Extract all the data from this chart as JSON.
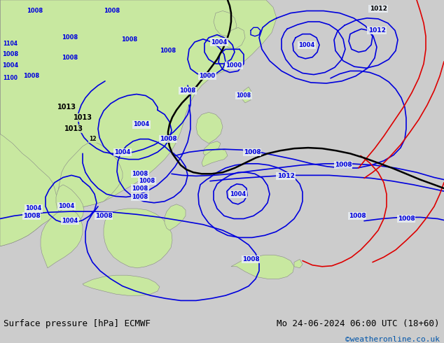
{
  "title_left": "Surface pressure [hPa] ECMWF",
  "title_right": "Mo 24-06-2024 06:00 UTC (18+60)",
  "credit": "©weatheronline.co.uk",
  "bg_map_color": "#e0e0e0",
  "land_color": "#c8e8a0",
  "ocean_color": "#e8eef4",
  "contour_blue": "#0000dd",
  "contour_black": "#000000",
  "contour_red": "#dd0000",
  "text_color": "#000000",
  "credit_color": "#0055aa",
  "footer_bg": "#cccccc",
  "font_size_footer": 9,
  "font_size_label": 6.5
}
